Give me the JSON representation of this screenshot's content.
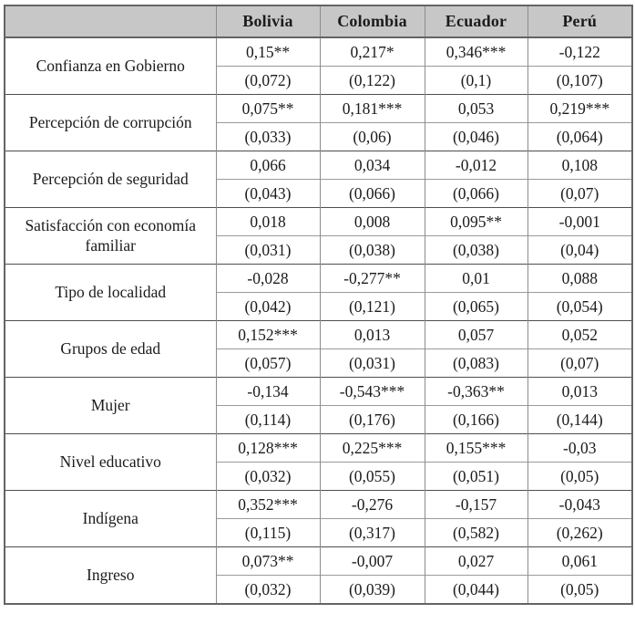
{
  "table": {
    "description": "Regression results table by country",
    "header": {
      "corner": "",
      "columns": [
        "Bolivia",
        "Colombia",
        "Ecuador",
        "Perú"
      ]
    },
    "rows": [
      {
        "label": "Confianza en Gobierno",
        "coefficients": [
          "0,15**",
          "0,217*",
          "0,346***",
          "-0,122"
        ],
        "std_errors": [
          "(0,072)",
          "(0,122)",
          "(0,1)",
          "(0,107)"
        ]
      },
      {
        "label": "Percepción de corrupción",
        "coefficients": [
          "0,075**",
          "0,181***",
          "0,053",
          "0,219***"
        ],
        "std_errors": [
          "(0,033)",
          "(0,06)",
          "(0,046)",
          "(0,064)"
        ]
      },
      {
        "label": "Percepción de seguridad",
        "coefficients": [
          "0,066",
          "0,034",
          "-0,012",
          "0,108"
        ],
        "std_errors": [
          "(0,043)",
          "(0,066)",
          "(0,066)",
          "(0,07)"
        ]
      },
      {
        "label": "Satisfacción con economía familiar",
        "coefficients": [
          "0,018",
          "0,008",
          "0,095**",
          "-0,001"
        ],
        "std_errors": [
          "(0,031)",
          "(0,038)",
          "(0,038)",
          "(0,04)"
        ]
      },
      {
        "label": "Tipo de localidad",
        "coefficients": [
          "-0,028",
          "-0,277**",
          "0,01",
          "0,088"
        ],
        "std_errors": [
          "(0,042)",
          "(0,121)",
          "(0,065)",
          "(0,054)"
        ]
      },
      {
        "label": "Grupos de edad",
        "coefficients": [
          "0,152***",
          "0,013",
          "0,057",
          "0,052"
        ],
        "std_errors": [
          "(0,057)",
          "(0,031)",
          "(0,083)",
          "(0,07)"
        ]
      },
      {
        "label": "Mujer",
        "coefficients": [
          "-0,134",
          "-0,543***",
          "-0,363**",
          "0,013"
        ],
        "std_errors": [
          "(0,114)",
          "(0,176)",
          "(0,166)",
          "(0,144)"
        ]
      },
      {
        "label": "Nivel educativo",
        "coefficients": [
          "0,128***",
          "0,225***",
          "0,155***",
          "-0,03"
        ],
        "std_errors": [
          "(0,032)",
          "(0,055)",
          "(0,051)",
          "(0,05)"
        ]
      },
      {
        "label": "Indígena",
        "coefficients": [
          "0,352***",
          "-0,276",
          "-0,157",
          "-0,043"
        ],
        "std_errors": [
          "(0,115)",
          "(0,317)",
          "(0,582)",
          "(0,262)"
        ]
      },
      {
        "label": "Ingreso",
        "coefficients": [
          "0,073**",
          "-0,007",
          "0,027",
          "0,061"
        ],
        "std_errors": [
          "(0,032)",
          "(0,039)",
          "(0,044)",
          "(0,05)"
        ]
      }
    ]
  },
  "colors": {
    "header_bg": "#c7c7c7",
    "outer_border": "#646464",
    "group_separator": "#4e4e4e",
    "inner_line": "#8c8c8c",
    "sub_row_line": "#9a9a9a",
    "text": "#1b1b1b"
  }
}
